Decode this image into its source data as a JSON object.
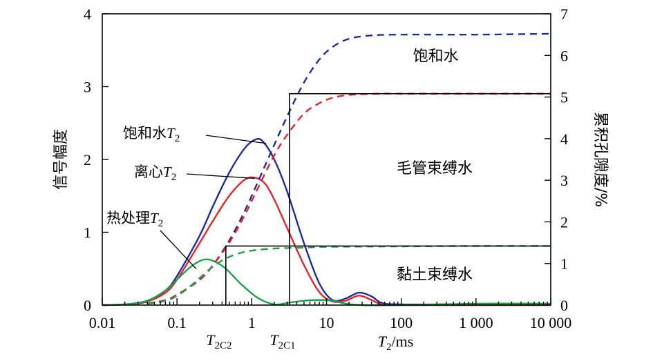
{
  "chart_data": {
    "type": "line",
    "x_axis": {
      "label_prefix": "T",
      "label_sub": "2",
      "label_suffix": "/ms",
      "scale": "log",
      "range": [
        0.01,
        10000
      ],
      "ticks": [
        {
          "value": 0.01,
          "label": "0.01"
        },
        {
          "value": 0.1,
          "label": "0.1"
        },
        {
          "value": 1,
          "label": "1"
        },
        {
          "value": 10,
          "label": "10"
        },
        {
          "value": 100,
          "label": "100"
        },
        {
          "value": 1000,
          "label": "1 000"
        },
        {
          "value": 10000,
          "label": "10 000"
        }
      ]
    },
    "y_left": {
      "label": "信号幅度",
      "range": [
        0,
        4
      ],
      "ticks": [
        {
          "value": 0,
          "label": "0"
        },
        {
          "value": 1,
          "label": "1"
        },
        {
          "value": 2,
          "label": "2"
        },
        {
          "value": 3,
          "label": "3"
        },
        {
          "value": 4,
          "label": "4"
        }
      ]
    },
    "y_right": {
      "label": "累积孔隙度/%",
      "range": [
        0,
        7
      ],
      "ticks": [
        {
          "value": 0,
          "label": "0"
        },
        {
          "value": 1,
          "label": "1"
        },
        {
          "value": 2,
          "label": "2"
        },
        {
          "value": 3,
          "label": "3"
        },
        {
          "value": 4,
          "label": "4"
        },
        {
          "value": 5,
          "label": "5"
        },
        {
          "value": 6,
          "label": "6"
        },
        {
          "value": 7,
          "label": "7"
        }
      ]
    },
    "series": [
      {
        "name": "饱和水T2",
        "axis": "left",
        "style": "solid",
        "color": "#1f2a9c",
        "points": [
          [
            0.01,
            0
          ],
          [
            0.02,
            0.01
          ],
          [
            0.04,
            0.05
          ],
          [
            0.07,
            0.2
          ],
          [
            0.1,
            0.4
          ],
          [
            0.2,
            0.95
          ],
          [
            0.3,
            1.35
          ],
          [
            0.5,
            1.82
          ],
          [
            0.8,
            2.15
          ],
          [
            1.1,
            2.27
          ],
          [
            1.4,
            2.25
          ],
          [
            2,
            2.0
          ],
          [
            3,
            1.55
          ],
          [
            5,
            0.85
          ],
          [
            8,
            0.3
          ],
          [
            12,
            0.07
          ],
          [
            18,
            0.09
          ],
          [
            27,
            0.17
          ],
          [
            40,
            0.12
          ],
          [
            55,
            0.03
          ],
          [
            100,
            0.01
          ],
          [
            1000,
            0.01
          ],
          [
            10000,
            0.01
          ]
        ]
      },
      {
        "name": "离心T2",
        "axis": "left",
        "style": "solid",
        "color": "#e0242a",
        "points": [
          [
            0.01,
            0
          ],
          [
            0.02,
            0.01
          ],
          [
            0.04,
            0.05
          ],
          [
            0.07,
            0.17
          ],
          [
            0.1,
            0.35
          ],
          [
            0.2,
            0.85
          ],
          [
            0.3,
            1.15
          ],
          [
            0.5,
            1.5
          ],
          [
            0.8,
            1.72
          ],
          [
            1.1,
            1.75
          ],
          [
            1.5,
            1.67
          ],
          [
            2,
            1.45
          ],
          [
            3,
            1.05
          ],
          [
            5,
            0.55
          ],
          [
            8,
            0.18
          ],
          [
            12,
            0.05
          ],
          [
            18,
            0.06
          ],
          [
            27,
            0.13
          ],
          [
            40,
            0.07
          ],
          [
            55,
            0.01
          ],
          [
            100,
            0.0
          ],
          [
            1000,
            0.0
          ],
          [
            10000,
            0.0
          ]
        ]
      },
      {
        "name": "热处理T2",
        "axis": "left",
        "style": "solid",
        "color": "#1aa24a",
        "points": [
          [
            0.01,
            0
          ],
          [
            0.02,
            0.01
          ],
          [
            0.04,
            0.06
          ],
          [
            0.07,
            0.2
          ],
          [
            0.1,
            0.35
          ],
          [
            0.15,
            0.52
          ],
          [
            0.22,
            0.62
          ],
          [
            0.3,
            0.61
          ],
          [
            0.45,
            0.5
          ],
          [
            0.7,
            0.3
          ],
          [
            1.2,
            0.1
          ],
          [
            2,
            0.01
          ],
          [
            3,
            0.03
          ],
          [
            5,
            0.06
          ],
          [
            8,
            0.07
          ],
          [
            12,
            0.06
          ],
          [
            18,
            0.02
          ],
          [
            30,
            0.0
          ],
          [
            100,
            0.0
          ],
          [
            1000,
            0.02
          ],
          [
            10000,
            0.02
          ]
        ]
      },
      {
        "name": "饱和水累积孔隙度",
        "axis": "right",
        "style": "dashed",
        "color": "#1f2a9c",
        "points": [
          [
            0.04,
            0.04
          ],
          [
            0.07,
            0.12
          ],
          [
            0.1,
            0.25
          ],
          [
            0.2,
            0.6
          ],
          [
            0.3,
            0.95
          ],
          [
            0.5,
            1.55
          ],
          [
            0.8,
            2.25
          ],
          [
            1.2,
            2.95
          ],
          [
            2,
            3.85
          ],
          [
            3,
            4.55
          ],
          [
            5,
            5.35
          ],
          [
            8,
            5.9
          ],
          [
            12,
            6.2
          ],
          [
            20,
            6.4
          ],
          [
            40,
            6.48
          ],
          [
            100,
            6.5
          ],
          [
            1000,
            6.5
          ],
          [
            10000,
            6.52
          ]
        ]
      },
      {
        "name": "离心累积孔隙度",
        "axis": "right",
        "style": "dashed",
        "color": "#e0242a",
        "points": [
          [
            0.04,
            0.04
          ],
          [
            0.07,
            0.12
          ],
          [
            0.1,
            0.25
          ],
          [
            0.2,
            0.6
          ],
          [
            0.3,
            0.95
          ],
          [
            0.5,
            1.5
          ],
          [
            0.8,
            2.15
          ],
          [
            1.2,
            2.8
          ],
          [
            2,
            3.6
          ],
          [
            3,
            4.1
          ],
          [
            5,
            4.6
          ],
          [
            8,
            4.85
          ],
          [
            12,
            4.98
          ],
          [
            20,
            5.05
          ],
          [
            50,
            5.08
          ],
          [
            100,
            5.08
          ],
          [
            1000,
            5.08
          ],
          [
            10000,
            5.08
          ]
        ]
      },
      {
        "name": "热处理累积孔隙度",
        "axis": "right",
        "style": "dashed",
        "color": "#1aa24a",
        "points": [
          [
            0.04,
            0.03
          ],
          [
            0.07,
            0.1
          ],
          [
            0.1,
            0.22
          ],
          [
            0.15,
            0.45
          ],
          [
            0.2,
            0.65
          ],
          [
            0.3,
            0.92
          ],
          [
            0.45,
            1.12
          ],
          [
            0.7,
            1.25
          ],
          [
            1,
            1.31
          ],
          [
            2,
            1.36
          ],
          [
            5,
            1.38
          ],
          [
            10,
            1.4
          ],
          [
            100,
            1.41
          ],
          [
            1000,
            1.42
          ],
          [
            10000,
            1.42
          ]
        ]
      }
    ],
    "cutoffs": [
      {
        "name": "T2C2",
        "main": "T",
        "sub": "2C2",
        "x": 0.45,
        "level_right": 1.42
      },
      {
        "name": "T2C1",
        "main": "T",
        "sub": "2C1",
        "x": 3.2,
        "level_right": 5.08
      }
    ],
    "regions": [
      {
        "name": "saturated",
        "label": "饱和水",
        "x": 290,
        "y_right": 6.0
      },
      {
        "name": "capillary",
        "label": "毛管束缚水",
        "x": 280,
        "y_right": 3.3
      },
      {
        "name": "clay",
        "label": "黏土束缚水",
        "x": 280,
        "y_right": 0.75
      }
    ],
    "callouts": [
      {
        "name": "saturated",
        "prefix": "饱和水",
        "main": "T",
        "sub": "2",
        "anchor_x": 1.55,
        "anchor_y": 2.22
      },
      {
        "name": "centrifuge",
        "prefix": "离心",
        "main": "T",
        "sub": "2",
        "anchor_x": 1.1,
        "anchor_y": 1.74
      },
      {
        "name": "heat",
        "prefix": "热处理",
        "main": "T",
        "sub": "2",
        "anchor_x": 0.18,
        "anchor_y": 0.5
      }
    ]
  }
}
